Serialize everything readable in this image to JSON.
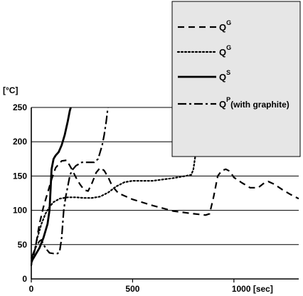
{
  "chart_data": {
    "type": "line",
    "ylabel": "[°C]",
    "xlim": [
      0,
      1320
    ],
    "ylim": [
      0,
      250
    ],
    "x_ticks": [
      {
        "value": 0,
        "label": "0"
      },
      {
        "value": 500,
        "label": "500"
      },
      {
        "value": 1000,
        "label": "1000 [sec]"
      }
    ],
    "y_ticks": [
      {
        "value": 0,
        "label": "0"
      },
      {
        "value": 50,
        "label": "50"
      },
      {
        "value": 100,
        "label": "100"
      },
      {
        "value": 150,
        "label": "150"
      },
      {
        "value": 200,
        "label": "200"
      },
      {
        "value": 250,
        "label": "250"
      }
    ],
    "grid": "horizontal",
    "legend_position": "top-right",
    "series": [
      {
        "name": "QG",
        "legend_base": "Q",
        "legend_sup": "G",
        "legend_tail": "",
        "style": "dashed",
        "points": [
          [
            0,
            22
          ],
          [
            20,
            45
          ],
          [
            40,
            80
          ],
          [
            60,
            105
          ],
          [
            80,
            125
          ],
          [
            100,
            145
          ],
          [
            120,
            162
          ],
          [
            150,
            172
          ],
          [
            175,
            173
          ],
          [
            200,
            160
          ],
          [
            220,
            148
          ],
          [
            240,
            138
          ],
          [
            260,
            130
          ],
          [
            280,
            128
          ],
          [
            300,
            140
          ],
          [
            320,
            155
          ],
          [
            340,
            162
          ],
          [
            360,
            158
          ],
          [
            380,
            148
          ],
          [
            400,
            135
          ],
          [
            430,
            125
          ],
          [
            500,
            116
          ],
          [
            600,
            107
          ],
          [
            700,
            99
          ],
          [
            800,
            95
          ],
          [
            860,
            93
          ],
          [
            880,
            95
          ],
          [
            900,
            120
          ],
          [
            920,
            150
          ],
          [
            940,
            158
          ],
          [
            960,
            160
          ],
          [
            980,
            157
          ],
          [
            1000,
            148
          ],
          [
            1040,
            140
          ],
          [
            1080,
            133
          ],
          [
            1120,
            133
          ],
          [
            1150,
            140
          ],
          [
            1170,
            142
          ],
          [
            1200,
            138
          ],
          [
            1240,
            130
          ],
          [
            1280,
            123
          ],
          [
            1320,
            117
          ]
        ]
      },
      {
        "name": "QG",
        "legend_base": "Q",
        "legend_sup": "G",
        "legend_tail": "",
        "style": "dotted",
        "points": [
          [
            0,
            20
          ],
          [
            15,
            40
          ],
          [
            30,
            60
          ],
          [
            50,
            80
          ],
          [
            70,
            95
          ],
          [
            90,
            105
          ],
          [
            110,
            112
          ],
          [
            140,
            117
          ],
          [
            180,
            119
          ],
          [
            220,
            119
          ],
          [
            260,
            118
          ],
          [
            300,
            118
          ],
          [
            340,
            120
          ],
          [
            380,
            126
          ],
          [
            420,
            135
          ],
          [
            460,
            141
          ],
          [
            500,
            143
          ],
          [
            600,
            143
          ],
          [
            700,
            147
          ],
          [
            760,
            150
          ],
          [
            790,
            152
          ],
          [
            800,
            160
          ],
          [
            810,
            180
          ],
          [
            820,
            190
          ],
          [
            840,
            194
          ],
          [
            860,
            194
          ],
          [
            880,
            198
          ],
          [
            900,
            203
          ],
          [
            920,
            208
          ],
          [
            940,
            212
          ],
          [
            960,
            212
          ],
          [
            980,
            209
          ],
          [
            1000,
            206
          ],
          [
            1020,
            202
          ],
          [
            1050,
            203
          ],
          [
            1090,
            206
          ],
          [
            1130,
            209
          ],
          [
            1170,
            209
          ],
          [
            1210,
            207
          ],
          [
            1240,
            206
          ],
          [
            1270,
            208
          ],
          [
            1300,
            213
          ],
          [
            1320,
            217
          ]
        ]
      },
      {
        "name": "QS",
        "legend_base": "Q",
        "legend_sup": "S",
        "legend_tail": "",
        "style": "solid",
        "points": [
          [
            0,
            25
          ],
          [
            20,
            35
          ],
          [
            40,
            45
          ],
          [
            60,
            60
          ],
          [
            80,
            80
          ],
          [
            90,
            100
          ],
          [
            95,
            130
          ],
          [
            100,
            160
          ],
          [
            110,
            175
          ],
          [
            120,
            180
          ],
          [
            135,
            185
          ],
          [
            150,
            195
          ],
          [
            165,
            210
          ],
          [
            180,
            230
          ],
          [
            190,
            245
          ],
          [
            195,
            250
          ]
        ]
      },
      {
        "name": "QP(with graphite)",
        "legend_base": "Q",
        "legend_sup": "P",
        "legend_tail": "(with graphite)",
        "style": "dashdot",
        "points": [
          [
            0,
            30
          ],
          [
            20,
            45
          ],
          [
            40,
            55
          ],
          [
            50,
            57
          ],
          [
            60,
            50
          ],
          [
            75,
            43
          ],
          [
            90,
            38
          ],
          [
            110,
            37
          ],
          [
            130,
            37
          ],
          [
            140,
            40
          ],
          [
            150,
            60
          ],
          [
            160,
            100
          ],
          [
            170,
            120
          ],
          [
            180,
            135
          ],
          [
            190,
            150
          ],
          [
            200,
            158
          ],
          [
            220,
            165
          ],
          [
            250,
            170
          ],
          [
            280,
            170
          ],
          [
            310,
            170
          ],
          [
            330,
            175
          ],
          [
            350,
            195
          ],
          [
            360,
            210
          ],
          [
            370,
            230
          ],
          [
            378,
            250
          ]
        ]
      }
    ]
  }
}
